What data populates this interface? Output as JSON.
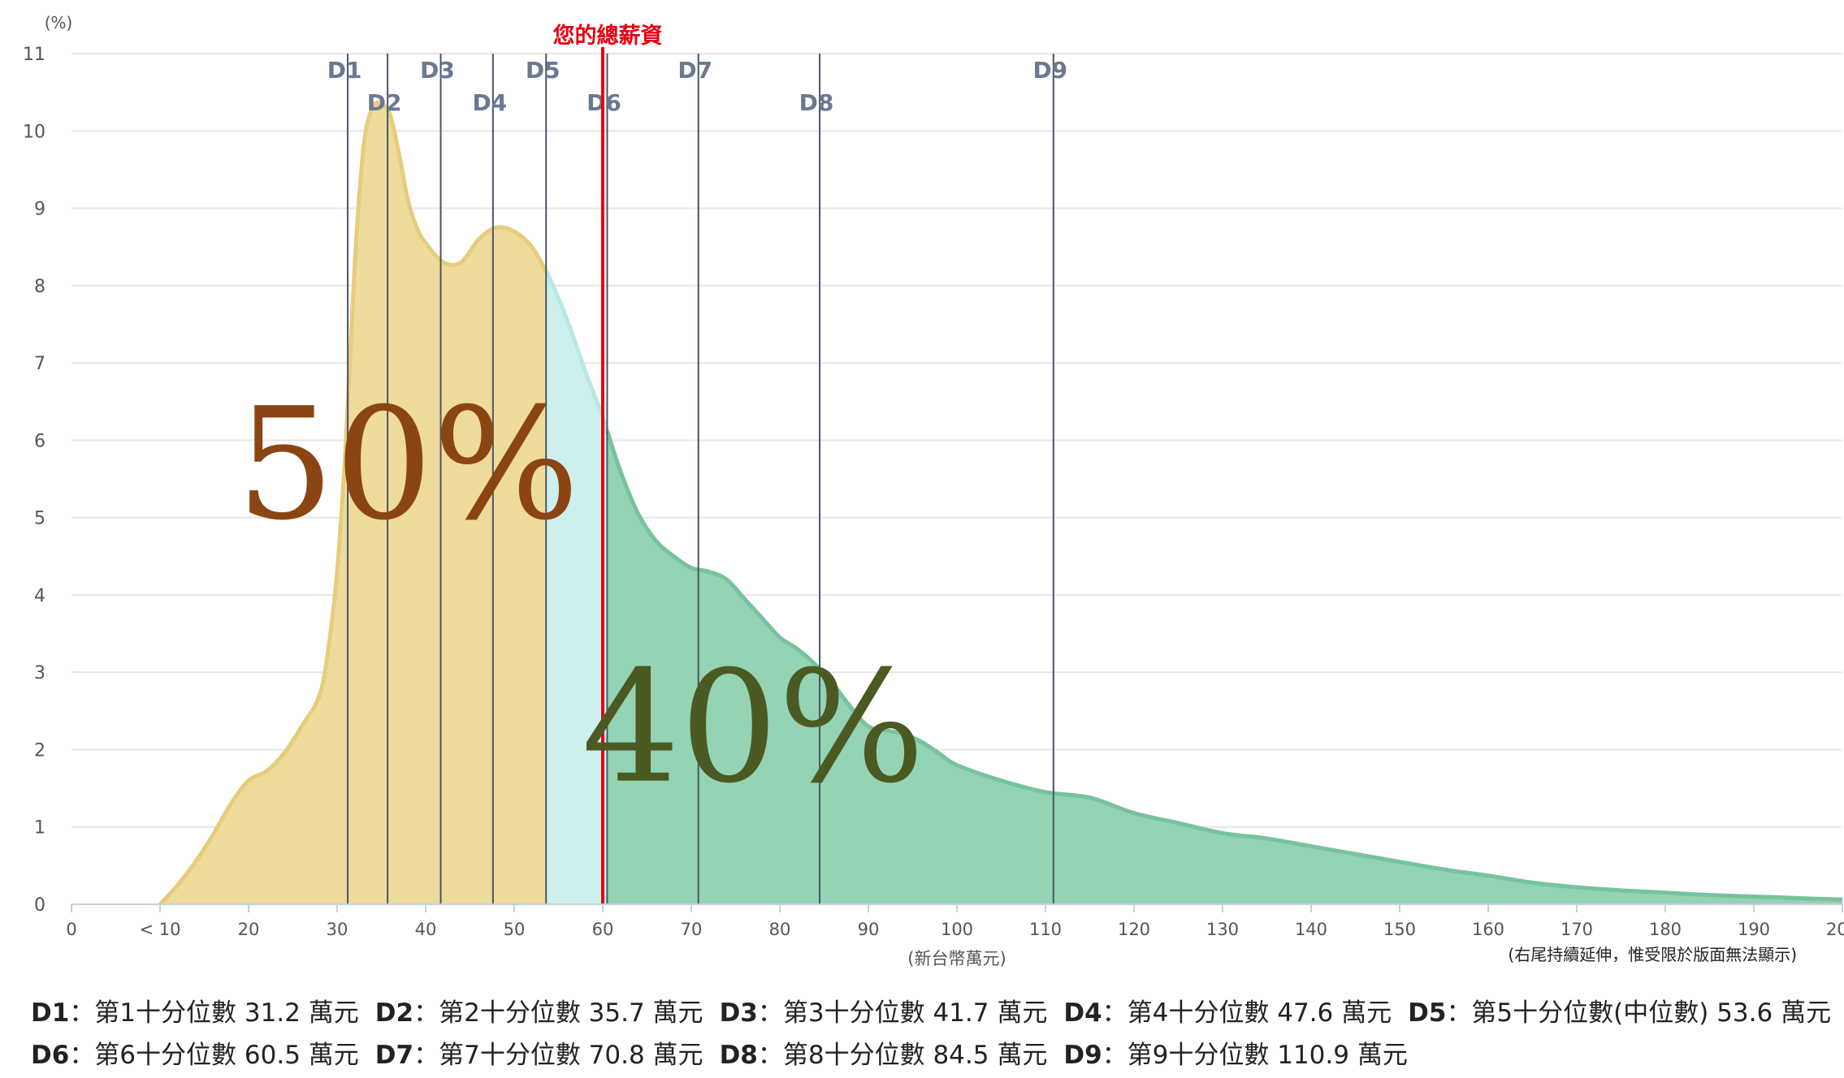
{
  "chart_data": {
    "type": "area",
    "ylabel": "(%)",
    "xlabel": "(新台幣萬元)",
    "tail_note": "(右尾持續延伸，惟受限於版面無法顯示)",
    "xlim": [
      0,
      200
    ],
    "ylim": [
      0,
      11
    ],
    "grid": true,
    "x_ticks": [
      {
        "value": 0,
        "label": "0"
      },
      {
        "value": 10,
        "label": "< 10"
      },
      {
        "value": 20,
        "label": "20"
      },
      {
        "value": 30,
        "label": "30"
      },
      {
        "value": 40,
        "label": "40"
      },
      {
        "value": 50,
        "label": "50"
      },
      {
        "value": 60,
        "label": "60"
      },
      {
        "value": 70,
        "label": "70"
      },
      {
        "value": 80,
        "label": "80"
      },
      {
        "value": 90,
        "label": "90"
      },
      {
        "value": 100,
        "label": "100"
      },
      {
        "value": 110,
        "label": "110"
      },
      {
        "value": 120,
        "label": "120"
      },
      {
        "value": 130,
        "label": "130"
      },
      {
        "value": 140,
        "label": "140"
      },
      {
        "value": 150,
        "label": "150"
      },
      {
        "value": 160,
        "label": "160"
      },
      {
        "value": 170,
        "label": "170"
      },
      {
        "value": 180,
        "label": "180"
      },
      {
        "value": 190,
        "label": "190"
      },
      {
        "value": 200,
        "label": "200"
      }
    ],
    "y_ticks": [
      {
        "value": 0,
        "label": "0"
      },
      {
        "value": 1,
        "label": "1"
      },
      {
        "value": 2,
        "label": "2"
      },
      {
        "value": 3,
        "label": "3"
      },
      {
        "value": 4,
        "label": "4"
      },
      {
        "value": 5,
        "label": "5"
      },
      {
        "value": 6,
        "label": "6"
      },
      {
        "value": 7,
        "label": "7"
      },
      {
        "value": 8,
        "label": "8"
      },
      {
        "value": 9,
        "label": "9"
      },
      {
        "value": 10,
        "label": "10"
      },
      {
        "value": 11,
        "label": "11"
      }
    ],
    "density": {
      "x": [
        10,
        12,
        14,
        16,
        18,
        20,
        22,
        24,
        26,
        28,
        29,
        30,
        31,
        32,
        33,
        34,
        35,
        36,
        37,
        38,
        39,
        40,
        42,
        44,
        46,
        48,
        50,
        52,
        54,
        56,
        58,
        60,
        62,
        64,
        66,
        68,
        70,
        72,
        74,
        76,
        78,
        80,
        82,
        84,
        86,
        88,
        90,
        92,
        94,
        96,
        98,
        100,
        105,
        110,
        115,
        120,
        125,
        130,
        135,
        140,
        145,
        150,
        155,
        160,
        165,
        170,
        175,
        180,
        185,
        190,
        195,
        200
      ],
      "y": [
        0,
        0.25,
        0.55,
        0.9,
        1.3,
        1.6,
        1.72,
        1.95,
        2.3,
        2.7,
        3.3,
        4.3,
        6.0,
        8.3,
        9.8,
        10.3,
        10.35,
        10.2,
        9.7,
        9.1,
        8.75,
        8.55,
        8.3,
        8.3,
        8.6,
        8.75,
        8.7,
        8.5,
        8.1,
        7.55,
        6.9,
        6.3,
        5.6,
        5.05,
        4.7,
        4.5,
        4.35,
        4.3,
        4.2,
        3.95,
        3.7,
        3.45,
        3.3,
        3.1,
        2.85,
        2.55,
        2.3,
        2.25,
        2.2,
        2.1,
        1.95,
        1.8,
        1.6,
        1.45,
        1.38,
        1.18,
        1.05,
        0.92,
        0.85,
        0.75,
        0.65,
        0.55,
        0.45,
        0.37,
        0.28,
        0.22,
        0.18,
        0.15,
        0.12,
        0.1,
        0.08,
        0.06
      ]
    },
    "regions": [
      {
        "from": 10,
        "to": 53.6,
        "color": "#efdb9c",
        "stroke": "#e6cc7c",
        "label": "50%",
        "label_color": "#8b4513",
        "label_x": 38,
        "label_y": 5.0
      },
      {
        "from": 53.6,
        "to": 60.5,
        "color": "#cdf0ee",
        "stroke": "#b8e8e4"
      },
      {
        "from": 60.5,
        "to": 200,
        "color": "#94d3b4",
        "stroke": "#76c39d",
        "label": "40%",
        "label_color": "#4a5a22",
        "label_x": 77,
        "label_y": 1.6
      }
    ],
    "salary_line": {
      "value": 60,
      "label": "您的總薪資",
      "color": "#e60012"
    },
    "deciles": [
      {
        "key": "D1",
        "value": 31.2,
        "row": 0,
        "desc": "第1十分位數 31.2 萬元"
      },
      {
        "key": "D2",
        "value": 35.7,
        "row": 1,
        "desc": "第2十分位數 35.7 萬元"
      },
      {
        "key": "D3",
        "value": 41.7,
        "row": 0,
        "desc": "第3十分位數 41.7 萬元"
      },
      {
        "key": "D4",
        "value": 47.6,
        "row": 1,
        "desc": "第4十分位數 47.6 萬元"
      },
      {
        "key": "D5",
        "value": 53.6,
        "row": 0,
        "desc": "第5十分位數(中位數) 53.6 萬元"
      },
      {
        "key": "D6",
        "value": 60.5,
        "row": 1,
        "desc": "第6十分位數 60.5 萬元"
      },
      {
        "key": "D7",
        "value": 70.8,
        "row": 0,
        "desc": "第7十分位數 70.8 萬元"
      },
      {
        "key": "D8",
        "value": 84.5,
        "row": 1,
        "desc": "第8十分位數 84.5 萬元"
      },
      {
        "key": "D9",
        "value": 110.9,
        "row": 0,
        "desc": "第9十分位數 110.9 萬元"
      }
    ],
    "legend_rows": [
      [
        0,
        1,
        2,
        3,
        4
      ],
      [
        5,
        6,
        7,
        8
      ]
    ],
    "legend_sep": "："
  }
}
